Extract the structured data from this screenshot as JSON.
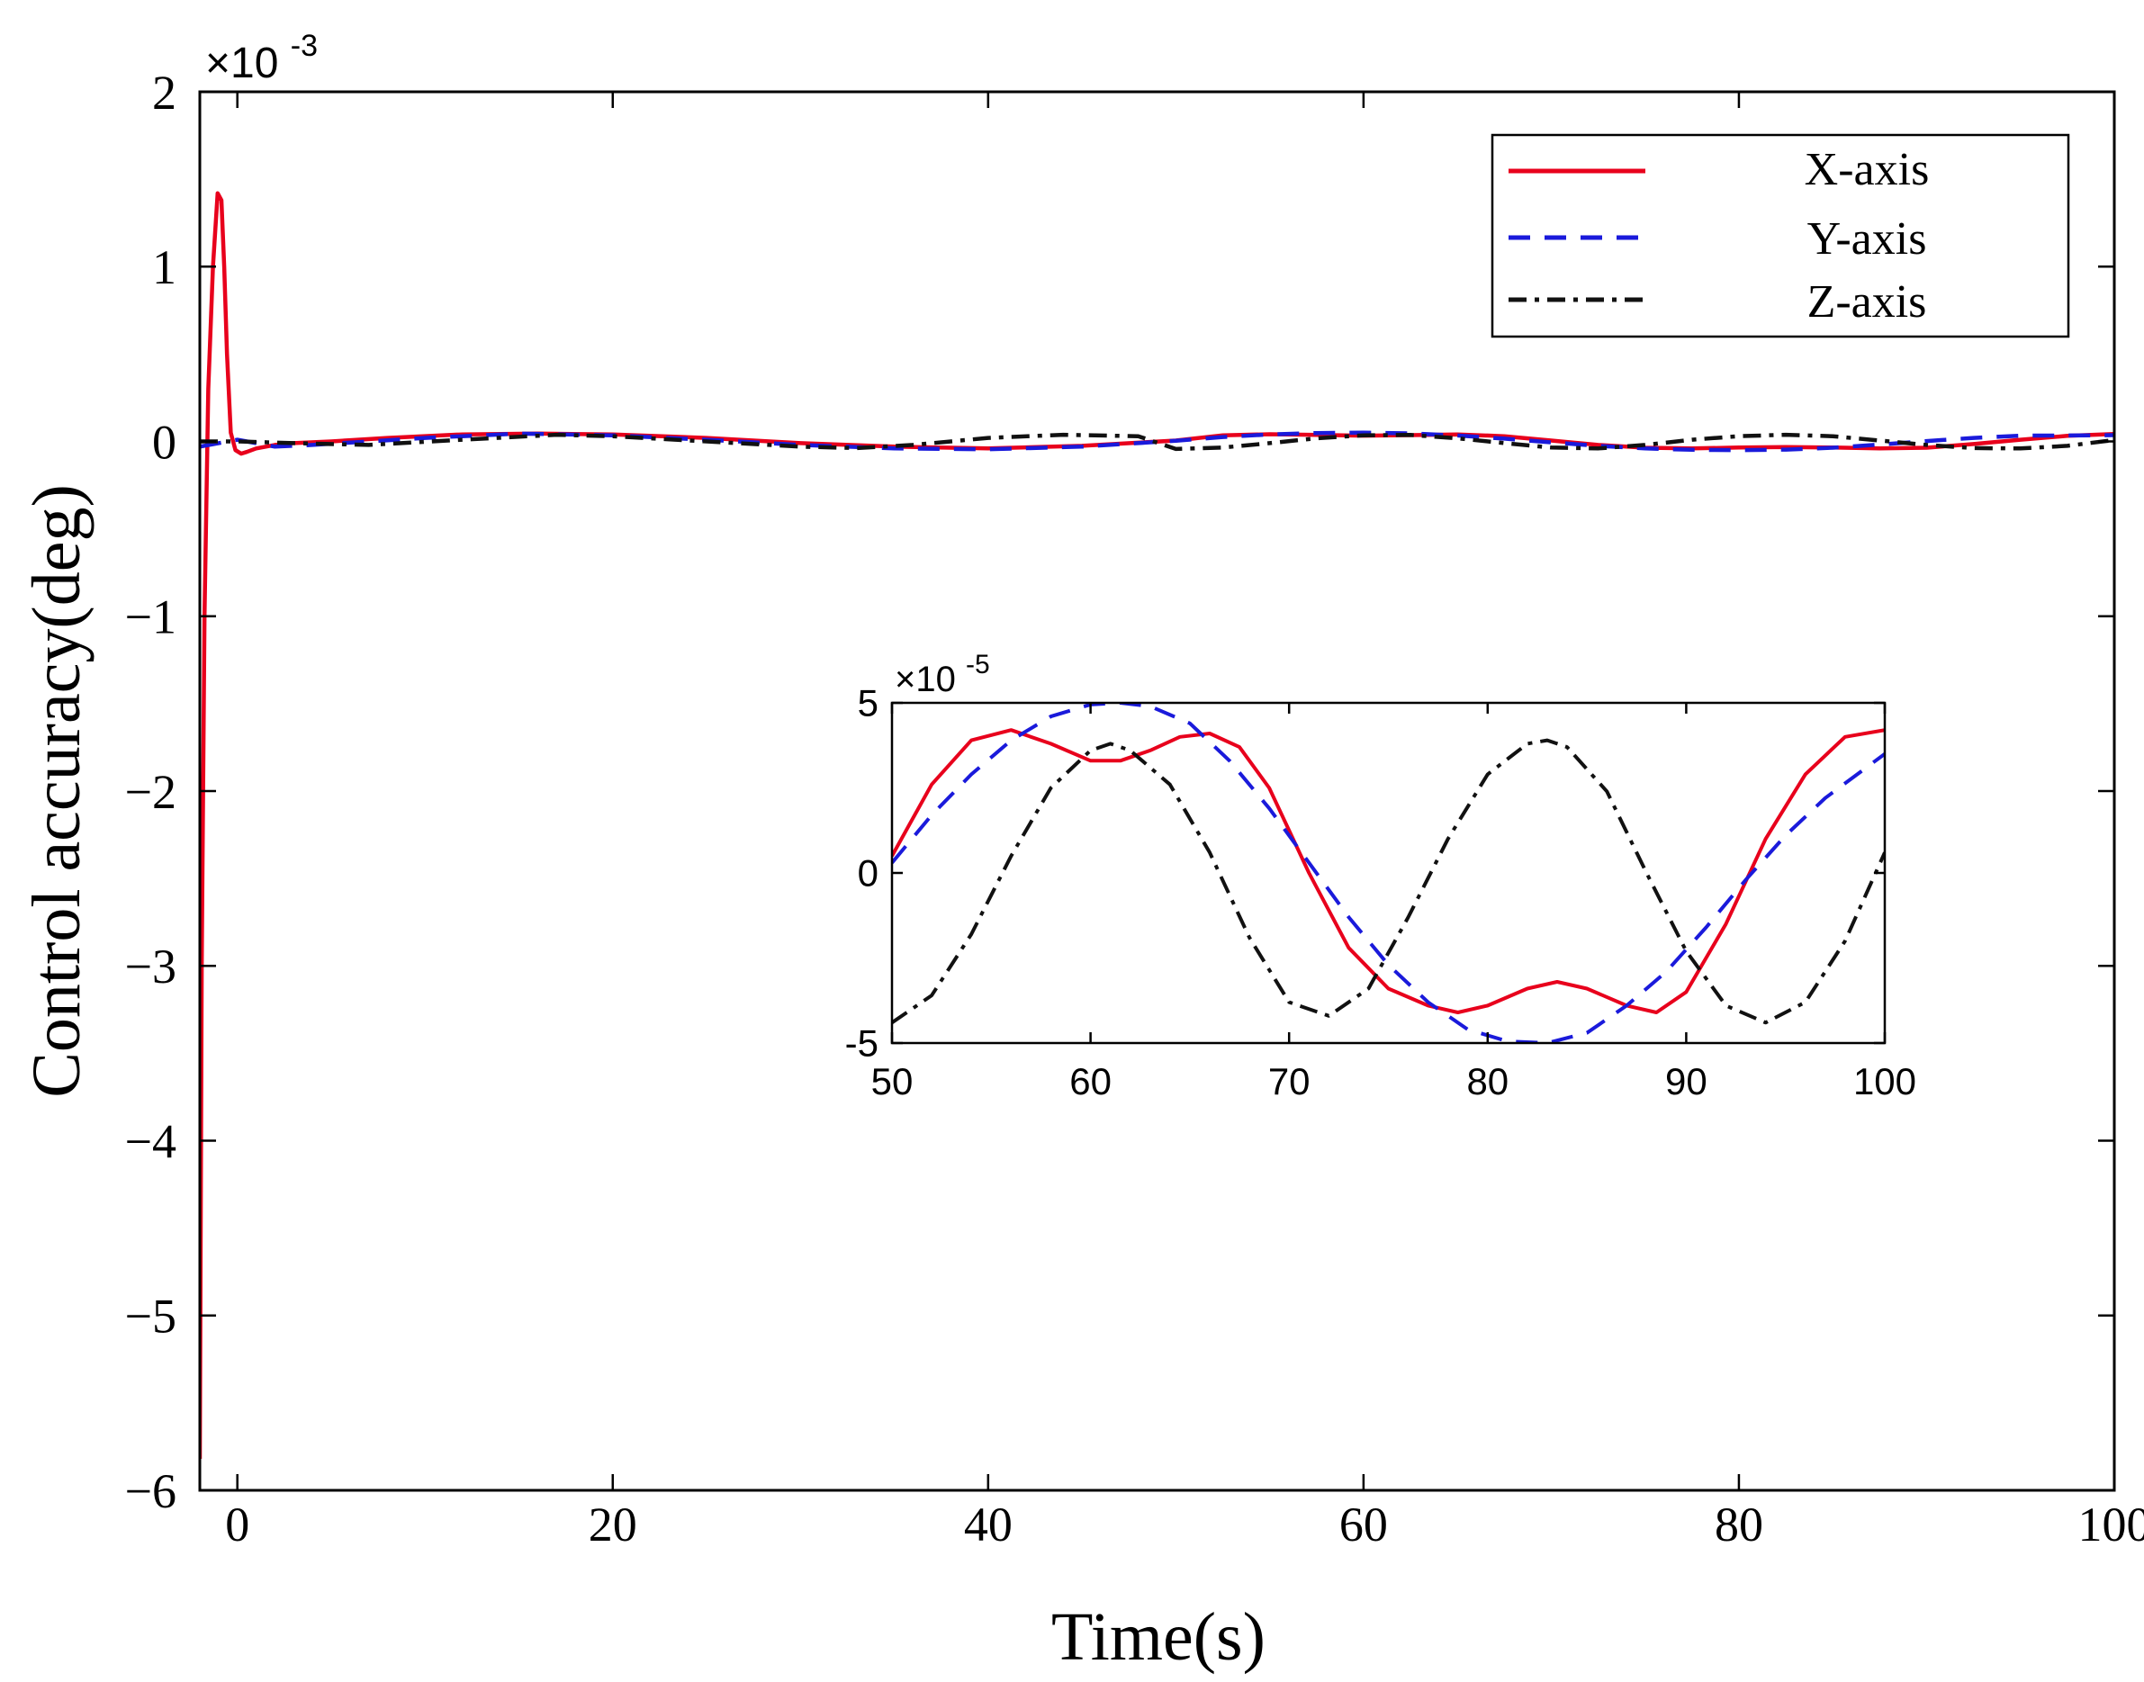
{
  "chart_data": [
    {
      "id": "main",
      "type": "line",
      "title": "",
      "xlabel": "Time(s)",
      "ylabel": "Control accuracy(deg)",
      "xlim": [
        -2,
        100
      ],
      "ylim": [
        -6,
        2
      ],
      "y_scale_label": "×10",
      "y_scale_exponent": "-3",
      "xticks": [
        0,
        20,
        40,
        60,
        80,
        100
      ],
      "xtick_labels": [
        "0",
        "20",
        "40",
        "60",
        "80",
        "100"
      ],
      "yticks": [
        -6,
        -5,
        -4,
        -3,
        -2,
        -1,
        0,
        1,
        2
      ],
      "ytick_labels": [
        "−6",
        "−5",
        "−4",
        "−3",
        "−2",
        "−1",
        "0",
        "1",
        "2"
      ],
      "grid": false,
      "legend_position": "top-right",
      "series": [
        {
          "name": "X-axis",
          "color": "#e8001c",
          "style": "solid",
          "x": [
            -2,
            -1.9,
            -1.75,
            -1.55,
            -1.3,
            -1.05,
            -0.85,
            -0.7,
            -0.55,
            -0.35,
            -0.1,
            0.2,
            0.5,
            1,
            2,
            3,
            5,
            8,
            12,
            16,
            20,
            25,
            30,
            35,
            40,
            45,
            50,
            52.5,
            55,
            57.5,
            60,
            62.5,
            65,
            67.5,
            70,
            72.5,
            75,
            77.5,
            80,
            82.5,
            85,
            87.5,
            90,
            92.5,
            95,
            97.5,
            100
          ],
          "y": [
            -5.82,
            -3.0,
            -1.0,
            0.3,
            1.0,
            1.42,
            1.38,
            1.0,
            0.5,
            0.05,
            -0.05,
            -0.07,
            -0.06,
            -0.04,
            -0.02,
            -0.01,
            0.0,
            0.02,
            0.04,
            0.045,
            0.04,
            0.02,
            -0.01,
            -0.03,
            -0.04,
            -0.025,
            0.005,
            0.035,
            0.041,
            0.037,
            0.033,
            0.036,
            0.04,
            0.03,
            0.005,
            -0.02,
            -0.036,
            -0.04,
            -0.035,
            -0.032,
            -0.035,
            -0.04,
            -0.036,
            -0.015,
            0.01,
            0.032,
            0.042
          ]
        },
        {
          "name": "Y-axis",
          "color": "#1a1adb",
          "style": "dashed",
          "x": [
            -2,
            -1,
            0,
            1,
            2,
            4,
            7,
            10,
            15,
            20,
            25,
            30,
            35,
            40,
            45,
            50,
            52.5,
            55,
            57.5,
            60,
            62.5,
            65,
            67.5,
            70,
            72.5,
            75,
            77.5,
            80,
            82.5,
            85,
            87.5,
            90,
            92.5,
            95,
            97.5,
            100
          ],
          "y": [
            -0.03,
            -0.01,
            0.01,
            -0.01,
            -0.03,
            -0.02,
            0.0,
            0.02,
            0.045,
            0.035,
            0.01,
            -0.02,
            -0.04,
            -0.045,
            -0.03,
            0.004,
            0.025,
            0.04,
            0.048,
            0.05,
            0.046,
            0.034,
            0.016,
            -0.005,
            -0.025,
            -0.04,
            -0.048,
            -0.05,
            -0.047,
            -0.036,
            -0.018,
            0.002,
            0.02,
            0.033,
            0.034,
            0.036
          ]
        },
        {
          "name": "Z-axis",
          "color": "#111111",
          "style": "dashdot",
          "x": [
            -2,
            0,
            3,
            7,
            12,
            17,
            20,
            25,
            30,
            33,
            36,
            40,
            44,
            48,
            50,
            52.5,
            55,
            57.5,
            60,
            62.5,
            65,
            67.5,
            70,
            72.5,
            75,
            77.5,
            80,
            82.5,
            85,
            87.5,
            90,
            92.5,
            95,
            97.5,
            100
          ],
          "y": [
            0.0,
            0.0,
            -0.01,
            -0.02,
            0.01,
            0.038,
            0.03,
            0.0,
            -0.03,
            -0.038,
            -0.02,
            0.02,
            0.038,
            0.03,
            -0.043,
            -0.035,
            -0.01,
            0.018,
            0.035,
            0.037,
            0.018,
            -0.01,
            -0.035,
            -0.04,
            -0.02,
            0.01,
            0.03,
            0.038,
            0.03,
            0.005,
            -0.02,
            -0.038,
            -0.04,
            -0.025,
            0.008
          ]
        }
      ]
    },
    {
      "id": "inset",
      "type": "line",
      "title": "",
      "xlabel": "",
      "ylabel": "",
      "xlim": [
        50,
        100
      ],
      "ylim": [
        -5,
        5
      ],
      "y_scale_label": "×10",
      "y_scale_exponent": "-5",
      "xticks": [
        50,
        60,
        70,
        80,
        90,
        100
      ],
      "xtick_labels": [
        "50",
        "60",
        "70",
        "80",
        "90",
        "100"
      ],
      "yticks": [
        -5,
        0,
        5
      ],
      "ytick_labels": [
        "-5",
        "0",
        "5"
      ],
      "grid": false,
      "series": [
        {
          "name": "X-axis",
          "color": "#e8001c",
          "style": "solid",
          "x": [
            50,
            52,
            54,
            56,
            58,
            60,
            61.5,
            63,
            64.5,
            66,
            67.5,
            69,
            71,
            73,
            75,
            77,
            78.5,
            80,
            82,
            83.5,
            85,
            87,
            88.5,
            90,
            92,
            94,
            96,
            98,
            100
          ],
          "y": [
            0.5,
            2.6,
            3.9,
            4.2,
            3.8,
            3.3,
            3.3,
            3.6,
            4.0,
            4.1,
            3.7,
            2.5,
            0.0,
            -2.2,
            -3.4,
            -3.9,
            -4.1,
            -3.9,
            -3.4,
            -3.2,
            -3.4,
            -3.9,
            -4.1,
            -3.5,
            -1.5,
            1.0,
            2.9,
            4.0,
            4.2
          ]
        },
        {
          "name": "Y-axis",
          "color": "#1a1adb",
          "style": "dashed",
          "x": [
            50,
            52,
            54,
            56,
            58,
            60,
            61.5,
            63,
            65,
            67,
            69,
            71,
            73,
            75,
            77,
            79,
            81,
            83,
            85,
            87,
            89,
            91,
            93,
            95,
            97,
            100
          ],
          "y": [
            0.3,
            1.7,
            2.9,
            3.9,
            4.6,
            4.95,
            5.0,
            4.9,
            4.4,
            3.3,
            1.9,
            0.3,
            -1.3,
            -2.7,
            -3.8,
            -4.6,
            -4.95,
            -5.0,
            -4.7,
            -3.9,
            -2.9,
            -1.6,
            -0.2,
            1.1,
            2.2,
            3.5
          ]
        },
        {
          "name": "Z-axis",
          "color": "#111111",
          "style": "dashdot",
          "x": [
            50,
            52,
            54,
            56,
            58,
            60,
            61,
            62,
            64,
            66,
            68,
            70,
            72,
            74,
            76,
            78,
            80,
            82,
            83,
            84,
            86,
            88,
            90,
            92,
            94,
            96,
            98,
            100
          ],
          "y": [
            -4.4,
            -3.6,
            -1.8,
            0.5,
            2.5,
            3.6,
            3.8,
            3.6,
            2.6,
            0.6,
            -1.9,
            -3.8,
            -4.2,
            -3.4,
            -1.3,
            1.0,
            2.9,
            3.8,
            3.9,
            3.7,
            2.4,
            0.0,
            -2.3,
            -3.9,
            -4.4,
            -3.8,
            -2.0,
            0.6
          ]
        }
      ]
    }
  ]
}
